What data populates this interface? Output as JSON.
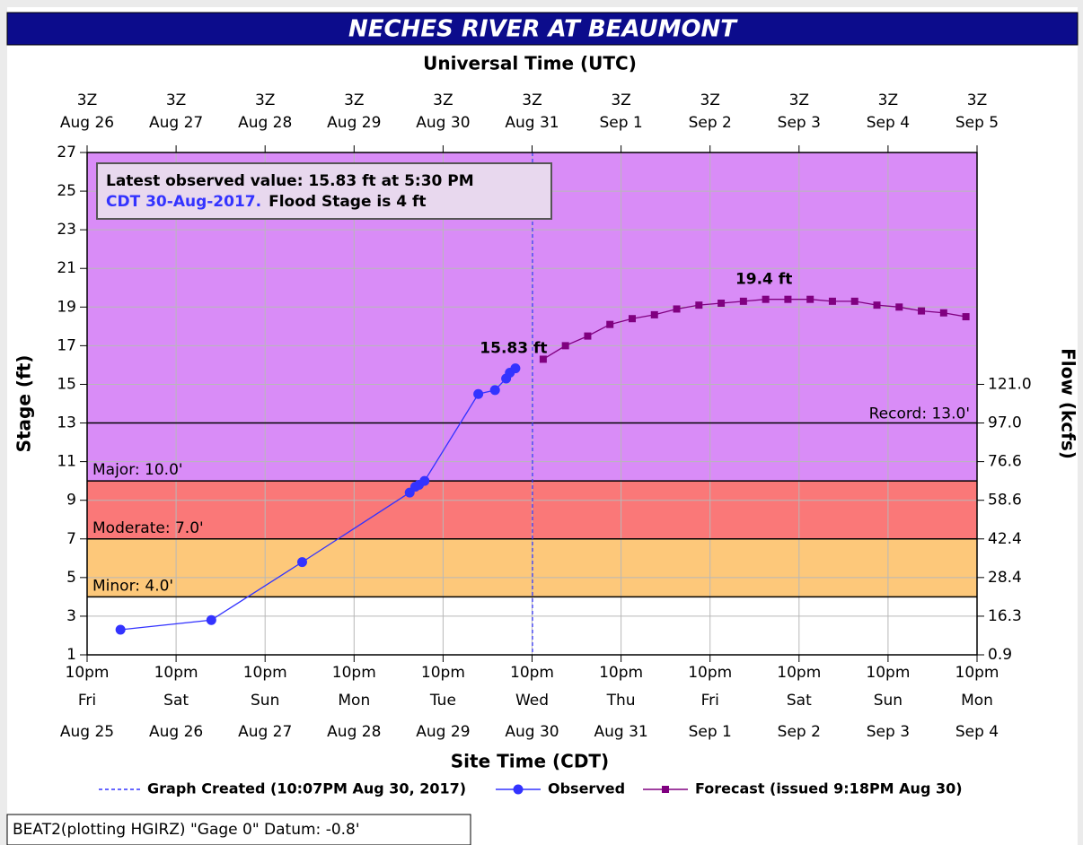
{
  "chart_data": {
    "type": "line",
    "title": "NECHES RIVER AT BEAUMONT",
    "x2_label": "Universal Time (UTC)",
    "x_label": "Site Time (CDT)",
    "y_label": "Stage (ft)",
    "y2_label": "Flow (kcfs)",
    "xlim": [
      "2017-08-25T22:00",
      "2017-09-04T22:00"
    ],
    "ylim": [
      1,
      27
    ],
    "yticks": [
      1,
      3,
      5,
      7,
      9,
      11,
      13,
      15,
      17,
      19,
      21,
      23,
      25,
      27
    ],
    "y2ticks": [
      {
        "value": 0.9,
        "label": "0.9",
        "stage": 1
      },
      {
        "value": 16.3,
        "label": "16.3",
        "stage": 3
      },
      {
        "value": 28.4,
        "label": "28.4",
        "stage": 5
      },
      {
        "value": 42.4,
        "label": "42.4",
        "stage": 7
      },
      {
        "value": 58.6,
        "label": "58.6",
        "stage": 9
      },
      {
        "value": 76.6,
        "label": "76.6",
        "stage": 11
      },
      {
        "value": 97.0,
        "label": "97.0",
        "stage": 13
      },
      {
        "value": 121.0,
        "label": "121.0",
        "stage": 15
      }
    ],
    "xticks": [
      {
        "value": "2017-08-25T22:00",
        "label": "10pm",
        "day": "Fri",
        "date": "Aug 25"
      },
      {
        "value": "2017-08-26T22:00",
        "label": "10pm",
        "day": "Sat",
        "date": "Aug 26"
      },
      {
        "value": "2017-08-27T22:00",
        "label": "10pm",
        "day": "Sun",
        "date": "Aug 27"
      },
      {
        "value": "2017-08-28T22:00",
        "label": "10pm",
        "day": "Mon",
        "date": "Aug 28"
      },
      {
        "value": "2017-08-29T22:00",
        "label": "10pm",
        "day": "Tue",
        "date": "Aug 29"
      },
      {
        "value": "2017-08-30T22:00",
        "label": "10pm",
        "day": "Wed",
        "date": "Aug 30"
      },
      {
        "value": "2017-08-31T22:00",
        "label": "10pm",
        "day": "Thu",
        "date": "Aug 31"
      },
      {
        "value": "2017-09-01T22:00",
        "label": "10pm",
        "day": "Fri",
        "date": "Sep 1"
      },
      {
        "value": "2017-09-02T22:00",
        "label": "10pm",
        "day": "Sat",
        "date": "Sep 2"
      },
      {
        "value": "2017-09-03T22:00",
        "label": "10pm",
        "day": "Sun",
        "date": "Sep 3"
      },
      {
        "value": "2017-09-04T22:00",
        "label": "10pm",
        "day": "Mon",
        "date": "Sep 4"
      }
    ],
    "x2ticks": [
      {
        "value": "2017-08-25T22:00",
        "label": "3Z",
        "date": "Aug 26"
      },
      {
        "value": "2017-08-26T22:00",
        "label": "3Z",
        "date": "Aug 27"
      },
      {
        "value": "2017-08-27T22:00",
        "label": "3Z",
        "date": "Aug 28"
      },
      {
        "value": "2017-08-28T22:00",
        "label": "3Z",
        "date": "Aug 29"
      },
      {
        "value": "2017-08-29T22:00",
        "label": "3Z",
        "date": "Aug 30"
      },
      {
        "value": "2017-08-30T22:00",
        "label": "3Z",
        "date": "Aug 31"
      },
      {
        "value": "2017-08-31T22:00",
        "label": "3Z",
        "date": "Sep 1"
      },
      {
        "value": "2017-09-01T22:00",
        "label": "3Z",
        "date": "Sep 2"
      },
      {
        "value": "2017-09-02T22:00",
        "label": "3Z",
        "date": "Sep 3"
      },
      {
        "value": "2017-09-03T22:00",
        "label": "3Z",
        "date": "Sep 4"
      },
      {
        "value": "2017-09-04T22:00",
        "label": "3Z",
        "date": "Sep 5"
      }
    ],
    "grid": true,
    "background_color": "#d98cf7",
    "thresholds": [
      {
        "value": 4,
        "label": "Minor: 4.0'",
        "color": "#fdc87a"
      },
      {
        "value": 7,
        "label": "Moderate: 7.0'",
        "color": "#fa7878"
      },
      {
        "value": 10,
        "label": "Major: 10.0'",
        "color": "#d98cf7"
      }
    ],
    "record": {
      "value": 13,
      "label": "Record: 13.0'"
    },
    "created": {
      "x": "2017-08-30T22:07",
      "label": "Graph Created (10:07PM Aug 30, 2017)",
      "color": "#3333ff"
    },
    "series": [
      {
        "name": "Observed",
        "color": "#3333ff",
        "marker": "circle",
        "x": [
          "2017-08-26T07:00",
          "2017-08-27T07:30",
          "2017-08-28T08:00",
          "2017-08-29T13:00",
          "2017-08-29T14:30",
          "2017-08-29T15:30",
          "2017-08-29T17:00",
          "2017-08-30T07:30",
          "2017-08-30T12:00",
          "2017-08-30T15:00",
          "2017-08-30T16:00",
          "2017-08-30T17:30"
        ],
        "values": [
          2.3,
          2.8,
          5.8,
          9.4,
          9.7,
          9.8,
          10.0,
          14.5,
          14.7,
          15.3,
          15.6,
          15.83
        ],
        "value_labels": [
          null,
          null,
          null,
          null,
          null,
          null,
          null,
          null,
          null,
          null,
          null,
          "15.83 ft"
        ]
      },
      {
        "name": "Forecast (issued 9:18PM Aug 30)",
        "color": "#800080",
        "marker": "square",
        "x": [
          "2017-08-31T01:00",
          "2017-08-31T07:00",
          "2017-08-31T13:00",
          "2017-08-31T19:00",
          "2017-09-01T01:00",
          "2017-09-01T07:00",
          "2017-09-01T13:00",
          "2017-09-01T19:00",
          "2017-09-02T01:00",
          "2017-09-02T07:00",
          "2017-09-02T13:00",
          "2017-09-02T19:00",
          "2017-09-03T01:00",
          "2017-09-03T07:00",
          "2017-09-03T13:00",
          "2017-09-03T19:00",
          "2017-09-04T01:00",
          "2017-09-04T07:00",
          "2017-09-04T13:00",
          "2017-09-04T19:00"
        ],
        "values": [
          16.3,
          17.0,
          17.5,
          18.1,
          18.4,
          18.6,
          18.9,
          19.1,
          19.2,
          19.3,
          19.4,
          19.4,
          19.4,
          19.3,
          19.3,
          19.1,
          19.0,
          18.8,
          18.7,
          18.5
        ],
        "value_labels": [
          null,
          null,
          null,
          null,
          null,
          null,
          null,
          null,
          null,
          null,
          "19.4 ft",
          null,
          null,
          null,
          null,
          null,
          null,
          null,
          null,
          null
        ]
      }
    ],
    "info": {
      "line1": "Latest observed value: 15.83 ft at 5:30 PM",
      "line2": "CDT 30-Aug-2017.",
      "flood_stage": "Flood Stage is 4 ft"
    },
    "footer": "BEAT2(plotting HGIRZ) \"Gage 0\" Datum: -0.8'"
  }
}
